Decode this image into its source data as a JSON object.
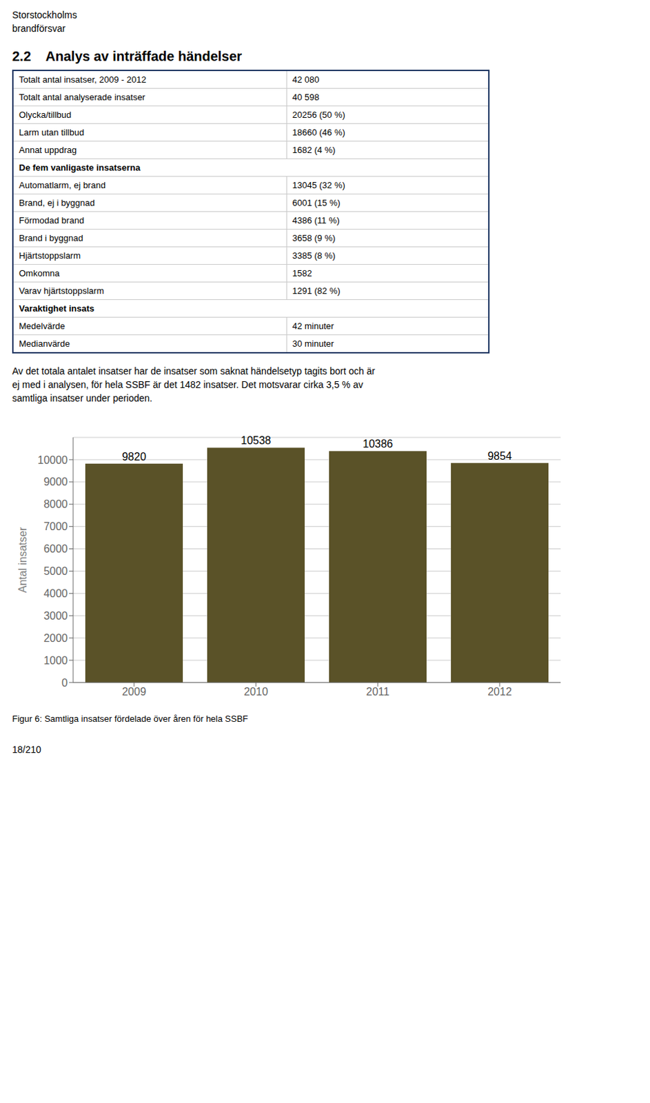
{
  "chart_data": {
    "type": "bar",
    "title": "Figur 6: Samtliga insatser fördelade över åren för hela SSBF",
    "subtitle": "2.2    Analys av inträffade händelser",
    "ylabel": "Antal insatser",
    "categories": [
      "2009",
      "2010",
      "2011",
      "2012"
    ],
    "values": [
      9820,
      10538,
      10386,
      9854
    ],
    "color": "#5a5228",
    "ylim": [
      0,
      11000
    ],
    "yticks": [
      0,
      1000,
      2000,
      3000,
      4000,
      5000,
      6000,
      7000,
      8000,
      9000,
      10000
    ],
    "grid": true,
    "data_labels": true,
    "annotations": [
      "Storstockholms",
      "brandförsvar",
      [
        "Totalt antal insatser, 2009 - 2012",
        "42 080"
      ],
      [
        "Totalt antal analyserade insatser",
        "40 598"
      ],
      [
        "Olycka/tillbud",
        "20256 (50 %)"
      ],
      [
        "Larm utan tillbud",
        "18660 (46 %)"
      ],
      [
        "Annat uppdrag",
        "1682 (4 %)"
      ],
      [
        "De fem vanligaste insatserna"
      ],
      [
        "Automatlarm, ej brand",
        "13045 (32 %)"
      ],
      [
        "Brand, ej i byggnad",
        "6001 (15 %)"
      ],
      [
        "Förmodad brand",
        "4386 (11 %)"
      ],
      [
        "Brand i byggnad",
        "3658 (9 %)"
      ],
      [
        "Hjärtstoppslarm",
        "3385 (8 %)"
      ],
      [
        "Omkomna",
        "1582"
      ],
      [
        "Varav hjärtstoppslarm",
        "1291 (82 %)"
      ],
      [
        "Varaktighet insats"
      ],
      [
        "Medelvärde",
        "42 minuter"
      ],
      [
        "Medianvärde",
        "30 minuter"
      ],
      "Av det totala antalet insatser har de insatser som saknat händelsetyp tagits bort och är",
      "ej med i analysen, för hela SSBF är det 1482 insatser. Det motsvarar cirka 3,5 % av",
      "samtliga insatser under perioden.",
      "18/210"
    ]
  }
}
